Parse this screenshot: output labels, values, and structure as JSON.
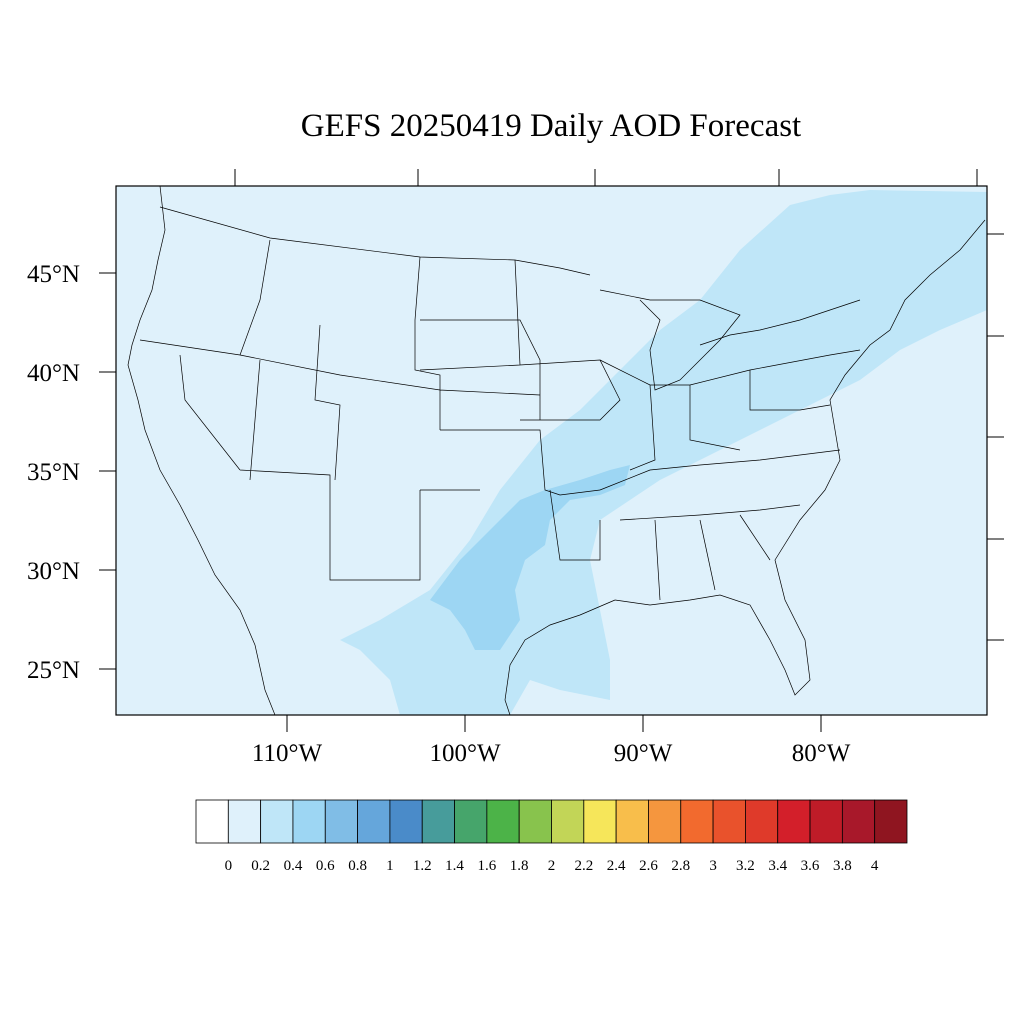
{
  "title": "GEFS 20250419 Daily AOD Forecast",
  "lat_labels": [
    "45°N",
    "40°N",
    "35°N",
    "30°N",
    "25°N"
  ],
  "lon_labels": [
    "110°W",
    "100°W",
    "90°W",
    "80°W"
  ],
  "colorbar": {
    "labels": [
      "0",
      "0.2",
      "0.4",
      "0.6",
      "0.8",
      "1",
      "1.2",
      "1.4",
      "1.6",
      "1.8",
      "2",
      "2.2",
      "2.4",
      "2.6",
      "2.8",
      "3",
      "3.2",
      "3.4",
      "3.6",
      "3.8",
      "4"
    ],
    "colors": [
      "#ffffff",
      "#dff1fb",
      "#bfe6f8",
      "#9dd6f3",
      "#80bde6",
      "#65a6db",
      "#4a8bc9",
      "#479c9b",
      "#46a56b",
      "#4cb348",
      "#88c34d",
      "#c2d557",
      "#f6e65a",
      "#f8be4b",
      "#f5963e",
      "#f26a2e",
      "#e9522c",
      "#df3a2a",
      "#d31f2a",
      "#bf1c28",
      "#a8182a",
      "#8f1520"
    ]
  },
  "colors": {
    "background": "#dff1fb",
    "aod_0_4": "#bfe6f8",
    "aod_0_6": "#9dd6f3",
    "outline": "#000000"
  }
}
